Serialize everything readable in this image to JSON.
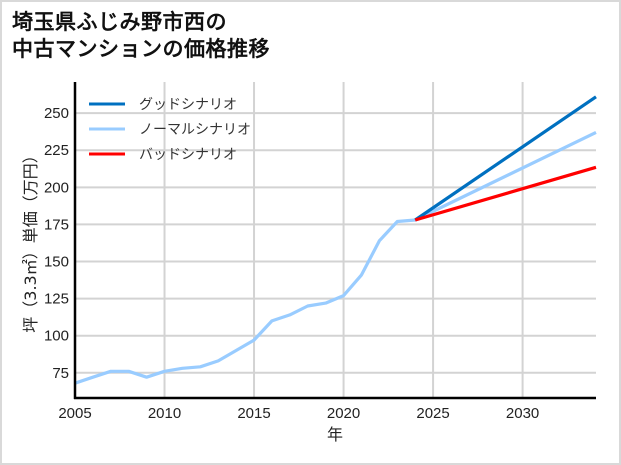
{
  "title": {
    "line1": "埼玉県ふじみ野市西の",
    "line2": "中古マンションの価格推移"
  },
  "chart_data": {
    "type": "line",
    "title": "埼玉県ふじみ野市西の中古マンションの価格推移",
    "xlabel": "年",
    "ylabel": "坪（3.3㎡）単価（万円）",
    "xlim": [
      2005,
      2034.1
    ],
    "ylim": [
      58,
      271
    ],
    "xticks": [
      2005,
      2010,
      2015,
      2020,
      2025,
      2030
    ],
    "yticks": [
      75,
      100,
      125,
      150,
      175,
      200,
      225,
      250
    ],
    "grid": true,
    "legend_position": "upper left",
    "series": [
      {
        "name": "グッドシナリオ",
        "color": "#0070c0",
        "x": [
          2024,
          2034.1
        ],
        "values": [
          178,
          261
        ]
      },
      {
        "name": "ノーマルシナリオ",
        "color": "#99ccff",
        "x": [
          2005,
          2006,
          2007,
          2008,
          2009,
          2010,
          2011,
          2012,
          2013,
          2014,
          2015,
          2016,
          2017,
          2018,
          2019,
          2020,
          2021,
          2022,
          2023,
          2024,
          2034.1
        ],
        "values": [
          68,
          72,
          76,
          76,
          72,
          76,
          78,
          79,
          83,
          90,
          97,
          110,
          114,
          120,
          122,
          127,
          141,
          164,
          177,
          178,
          237
        ]
      },
      {
        "name": "バッドシナリオ",
        "color": "#ff0000",
        "x": [
          2024,
          2034.1
        ],
        "values": [
          178,
          213.5
        ]
      }
    ]
  }
}
